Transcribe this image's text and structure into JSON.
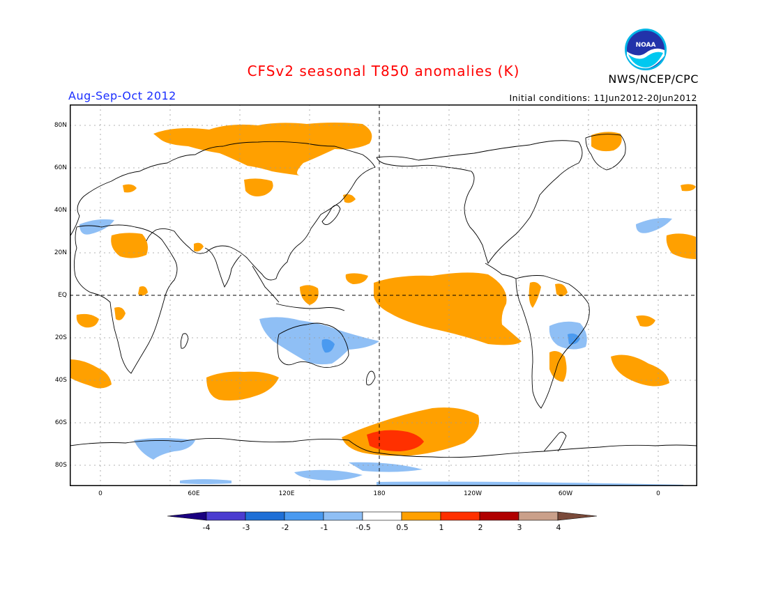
{
  "header": {
    "title": "CFSv2 seasonal T850 anomalies (K)",
    "agency": "NWS/NCEP/CPC",
    "logo_text": "NOAA",
    "period": "Aug-Sep-Oct 2012",
    "initial_conditions": "Initial conditions: 11Jun2012-20Jun2012"
  },
  "map": {
    "projection": "equirectangular, centered 180",
    "lat_labels": [
      "80N",
      "60N",
      "40N",
      "20N",
      "EQ",
      "20S",
      "40S",
      "60S",
      "80S"
    ],
    "lon_labels": [
      "0",
      "60E",
      "120E",
      "180",
      "120W",
      "60W",
      "0"
    ],
    "anomaly_regions": [
      {
        "name": "Northern Eurasia / Siberia",
        "category": "0.5 to 1"
      },
      {
        "name": "Central Equatorial Pacific",
        "category": "0.5 to 1"
      },
      {
        "name": "Amundsen Sea / Southern Pacific",
        "category": "0.5 to 1"
      },
      {
        "name": "Amundsen Sea core",
        "category": "1 to 2"
      },
      {
        "name": "Australia",
        "category": "-1 to -0.5"
      },
      {
        "name": "South America interior",
        "category": "-1 to -0.5"
      },
      {
        "name": "Antarctic coast Indian Ocean sector",
        "category": "-1 to -0.5"
      }
    ]
  },
  "colorbar": {
    "labels": [
      "-4",
      "-3",
      "-2",
      "-1",
      "-0.5",
      "0.5",
      "1",
      "2",
      "3",
      "4"
    ],
    "colors": [
      "#1a0080",
      "#4b3cd0",
      "#1f6fd6",
      "#4a9af0",
      "#8fbff5",
      "#ffffff",
      "#ffa000",
      "#ff3000",
      "#b00000",
      "#caa08a",
      "#7a4a3a"
    ]
  }
}
